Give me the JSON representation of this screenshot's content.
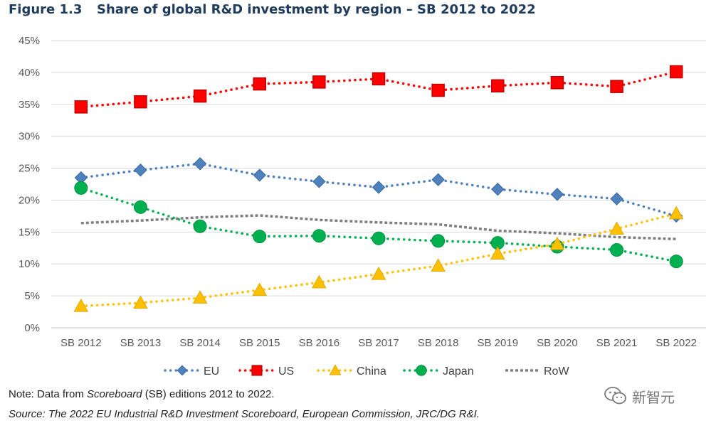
{
  "figure": {
    "number": "Figure 1.3",
    "title": "Share of global R&D investment by region – SB 2012 to 2022"
  },
  "notes": {
    "note_prefix": "Note: Data from ",
    "note_italic": "Scoreboard",
    "note_suffix": " (SB) editions 2012 to 2022.",
    "source": "Source: The 2022 EU Industrial R&D Investment Scoreboard, European Commission, JRC/DG R&I."
  },
  "watermark": {
    "text": "新智元",
    "icon": "wechat-logo-icon"
  },
  "chart_data": {
    "type": "line",
    "title": "Share of global R&D investment by region – SB 2012 to 2022",
    "xlabel": "",
    "ylabel": "",
    "categories": [
      "SB 2012",
      "SB 2013",
      "SB 2014",
      "SB 2015",
      "SB 2016",
      "SB 2017",
      "SB 2018",
      "SB 2019",
      "SB 2020",
      "SB 2021",
      "SB 2022"
    ],
    "ylim": [
      0,
      45
    ],
    "yticks": [
      0,
      5,
      10,
      15,
      20,
      25,
      30,
      35,
      40,
      45
    ],
    "ytick_labels": [
      "0%",
      "5%",
      "10%",
      "15%",
      "20%",
      "25%",
      "30%",
      "35%",
      "40%",
      "45%"
    ],
    "grid": "horizontal",
    "legend_position": "bottom",
    "series": [
      {
        "name": "EU",
        "color": "#4f81bd",
        "marker": "diamond",
        "values": [
          23.5,
          24.7,
          25.7,
          23.9,
          22.9,
          22.0,
          23.2,
          21.7,
          20.9,
          20.2,
          17.5
        ]
      },
      {
        "name": "US",
        "color": "#ff0000",
        "marker": "square",
        "values": [
          34.6,
          35.4,
          36.3,
          38.2,
          38.5,
          39.0,
          37.2,
          37.9,
          38.4,
          37.8,
          40.1
        ]
      },
      {
        "name": "China",
        "color": "#ffc000",
        "marker": "triangle",
        "values": [
          3.4,
          3.9,
          4.7,
          5.9,
          7.1,
          8.4,
          9.7,
          11.6,
          13.1,
          15.5,
          17.9
        ]
      },
      {
        "name": "Japan",
        "color": "#00b050",
        "marker": "circle",
        "values": [
          21.9,
          18.9,
          15.9,
          14.3,
          14.4,
          14.0,
          13.6,
          13.3,
          12.7,
          12.2,
          10.4
        ]
      },
      {
        "name": "RoW",
        "color": "#808080",
        "marker": "dash",
        "values": [
          16.4,
          16.8,
          17.3,
          17.6,
          16.9,
          16.5,
          16.2,
          15.2,
          14.8,
          14.2,
          13.9
        ]
      }
    ]
  }
}
